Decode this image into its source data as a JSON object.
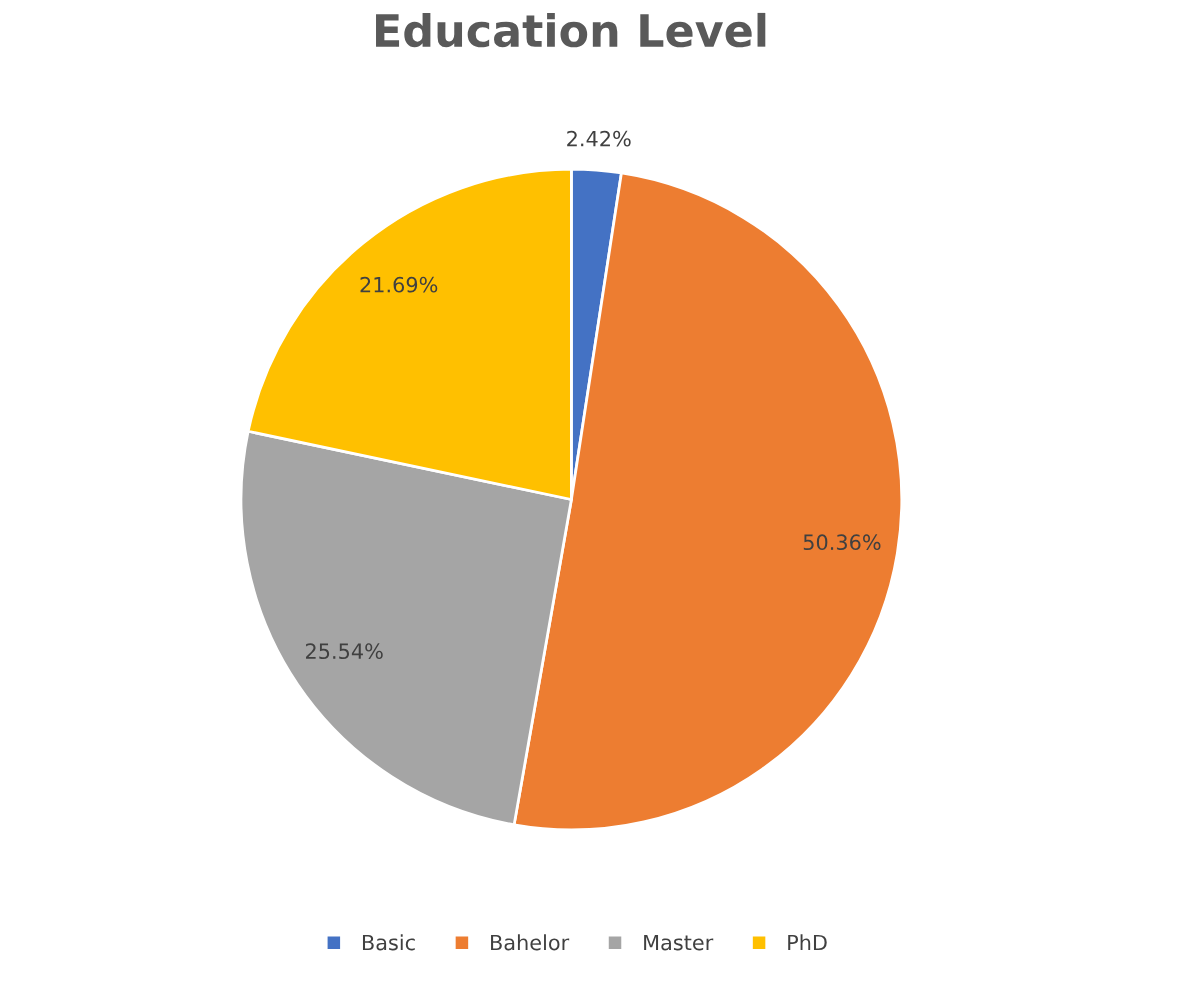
{
  "chart_data": {
    "type": "pie",
    "title": "Education Level",
    "categories": [
      "Basic",
      "Bahelor",
      "Master",
      "PhD"
    ],
    "values": [
      2.42,
      50.36,
      25.54,
      21.69
    ],
    "colors": [
      "#4472c4",
      "#ed7d31",
      "#a5a5a5",
      "#ffc000"
    ],
    "value_labels": [
      "2.42%",
      "50.36%",
      "25.54%",
      "21.69%"
    ],
    "legend": "bottom"
  }
}
